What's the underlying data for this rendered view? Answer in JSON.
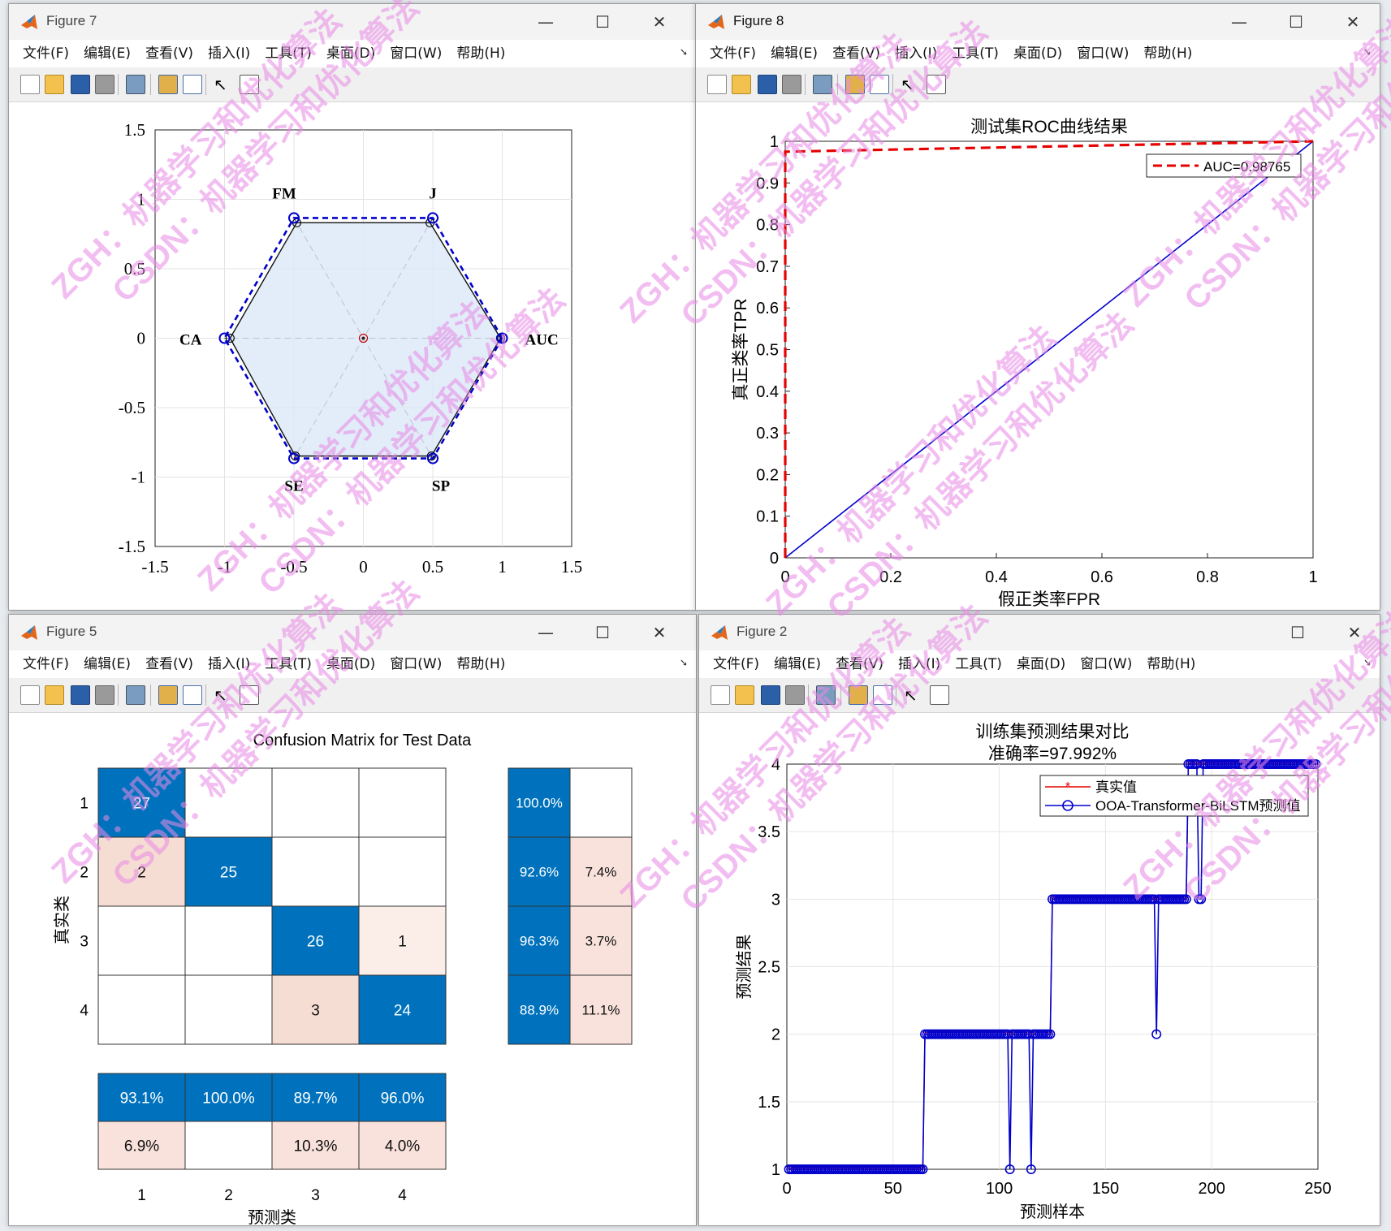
{
  "menu_items": [
    "文件(F)",
    "编辑(E)",
    "查看(V)",
    "插入(I)",
    "工具(T)",
    "桌面(D)",
    "窗口(W)",
    "帮助(H)"
  ],
  "watermark": {
    "line1": "ZGH：机器学习和优化算法",
    "line2": "CSDN：机器学习和优化算法",
    "color": "#e98ae6"
  },
  "colors": {
    "matlab_blue": "#0000cc",
    "roc_red": "#e60000",
    "cm_dark_blue": "#0072bd",
    "cm_light_pink": "#f9e2dc",
    "radar_fill": "#dbe8f8"
  },
  "windows": {
    "fig7": {
      "title": "Figure 7",
      "chart_data": {
        "type": "radar",
        "axes": [
          "AUC",
          "J",
          "FM",
          "CA",
          "SE",
          "SP"
        ],
        "series": [
          {
            "values": [
              0.98765,
              0.96,
              0.96,
              0.96,
              0.98,
              0.98
            ]
          },
          {
            "values": [
              1,
              1,
              1,
              1,
              1,
              1
            ]
          }
        ],
        "xlim": [
          -1.5,
          1.5
        ],
        "ylim": [
          -1.5,
          1.5
        ],
        "xticks": [
          "-1.5",
          "-1",
          "-0.5",
          "0",
          "0.5",
          "1",
          "1.5"
        ],
        "yticks": [
          "1.5",
          "1",
          "0.5",
          "0",
          "-0.5",
          "-1",
          "-1.5"
        ],
        "grid": true
      }
    },
    "fig8": {
      "title": "Figure 8",
      "chart_data": {
        "type": "line",
        "title": "测试集ROC曲线结果",
        "xlabel": "假正类率FPR",
        "ylabel": "真正类率TPR",
        "xlim": [
          0,
          1
        ],
        "ylim": [
          0,
          1
        ],
        "xticks": [
          "0",
          "0.2",
          "0.4",
          "0.6",
          "0.8",
          "1"
        ],
        "yticks": [
          "0",
          "0.1",
          "0.2",
          "0.3",
          "0.4",
          "0.5",
          "0.6",
          "0.7",
          "0.8",
          "0.9",
          "1"
        ],
        "legend_label": "AUC=0.98765",
        "legend_position": "top-right",
        "series": [
          {
            "name": "AUC=0.98765",
            "x": [
              0,
              0,
              0,
              1
            ],
            "y": [
              0,
              0.975,
              0.975,
              1
            ]
          },
          {
            "x": [
              0,
              1
            ],
            "y": [
              0,
              1
            ]
          }
        ]
      }
    },
    "fig5": {
      "title": "Figure 5",
      "chart_data": {
        "type": "heatmap",
        "title": "Confusion Matrix for Test Data",
        "xlabel": "预测类",
        "ylabel": "真实类",
        "classes": [
          "1",
          "2",
          "3",
          "4"
        ],
        "matrix": [
          [
            27,
            null,
            null,
            null
          ],
          [
            2,
            25,
            null,
            null
          ],
          [
            null,
            null,
            26,
            1
          ],
          [
            null,
            null,
            3,
            24
          ]
        ],
        "row_summary": [
          [
            "100.0%",
            ""
          ],
          [
            "92.6%",
            "7.4%"
          ],
          [
            "96.3%",
            "3.7%"
          ],
          [
            "88.9%",
            "11.1%"
          ]
        ],
        "col_summary": [
          [
            "93.1%",
            "6.9%"
          ],
          [
            "100.0%",
            ""
          ],
          [
            "89.7%",
            "10.3%"
          ],
          [
            "96.0%",
            "4.0%"
          ]
        ]
      }
    },
    "fig2": {
      "title": "Figure 2",
      "chart_data": {
        "type": "line",
        "title": "训练集预测结果对比",
        "subtitle": "准确率=97.992%",
        "xlabel": "预测样本",
        "ylabel": "预测结果",
        "xlim": [
          0,
          250
        ],
        "ylim": [
          1,
          4
        ],
        "xticks": [
          "0",
          "50",
          "100",
          "150",
          "200",
          "250"
        ],
        "yticks": [
          "1",
          "1.5",
          "2",
          "2.5",
          "3",
          "3.5",
          "4"
        ],
        "grid": true,
        "legend_position": "top-right",
        "series": [
          {
            "name": "真实值",
            "segments": [
              [
                1,
                64,
                1
              ],
              [
                65,
                124,
                2
              ],
              [
                125,
                188,
                3
              ],
              [
                189,
                249,
                4
              ]
            ]
          },
          {
            "name": "OOA-Transformer-BiLSTM预测值",
            "segments": [
              [
                1,
                64,
                1
              ],
              [
                65,
                124,
                2
              ],
              [
                125,
                188,
                3
              ],
              [
                189,
                249,
                4
              ]
            ],
            "outliers": [
              [
                105,
                1
              ],
              [
                115,
                1
              ],
              [
                174,
                2
              ],
              [
                194,
                3
              ],
              [
                195,
                3
              ]
            ]
          }
        ]
      }
    }
  }
}
